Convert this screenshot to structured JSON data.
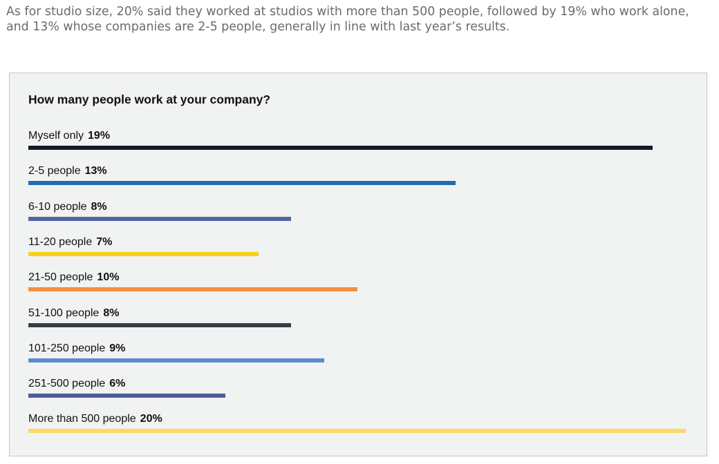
{
  "intro_text": "As for studio size, 20% said they worked at studios with more than 500 people, followed by 19% who work alone, and 13% whose companies are 2-5 people, generally in line with last year’s results.",
  "chart_data": {
    "type": "bar",
    "orientation": "horizontal",
    "title": "How many people work at your company?",
    "categories": [
      "Myself only",
      "2-5 people",
      "6-10 people",
      "11-20 people",
      "21-50 people",
      "51-100 people",
      "101-250 people",
      "251-500 people",
      "More than 500 people"
    ],
    "values": [
      19,
      13,
      8,
      7,
      10,
      8,
      9,
      6,
      20
    ],
    "value_labels": [
      "19%",
      "13%",
      "8%",
      "7%",
      "10%",
      "8%",
      "9%",
      "6%",
      "20%"
    ],
    "unit": "%",
    "colors": [
      "#141c2b",
      "#1f6db4",
      "#4f679d",
      "#f7d117",
      "#f58d3d",
      "#3a3d47",
      "#5b8ccf",
      "#4c5f98",
      "#fcd964"
    ],
    "xlim": [
      0,
      20
    ],
    "grid": false,
    "legend": "none"
  }
}
